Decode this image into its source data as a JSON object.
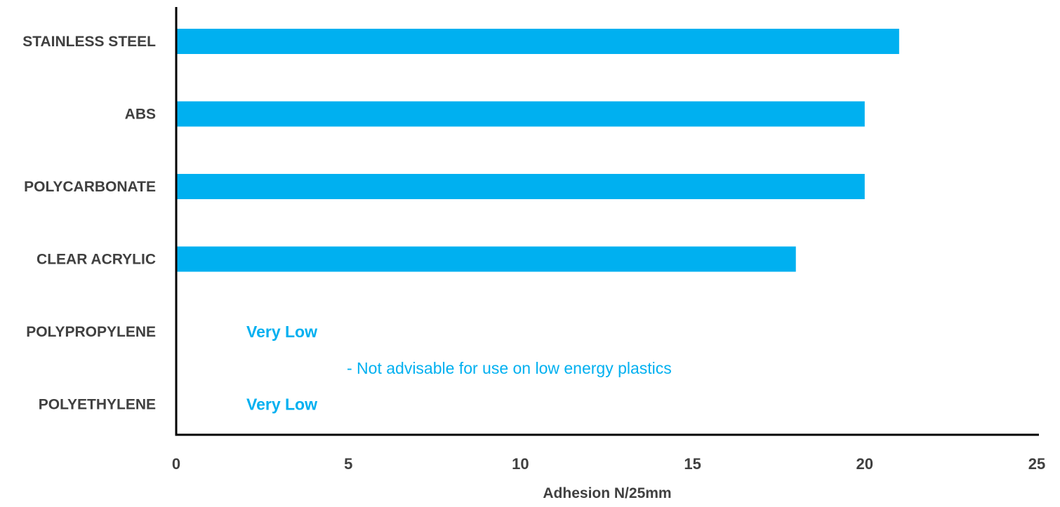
{
  "chart_data": {
    "type": "bar",
    "orientation": "horizontal",
    "categories": [
      "STAINLESS STEEL",
      "ABS",
      "POLYCARBONATE",
      "CLEAR ACRYLIC",
      "POLYPROPYLENE",
      "POLYETHYLENE"
    ],
    "values": [
      21,
      20,
      20,
      18,
      null,
      null
    ],
    "xlabel": "Adhesion N/25mm",
    "ylabel": "",
    "xlim": [
      0,
      25
    ],
    "xticks": [
      "0",
      "5",
      "10",
      "15",
      "20",
      "25"
    ],
    "grid": false,
    "legend": "none",
    "bar_color": "#00b0f0",
    "text_color": "#404040",
    "annotations": [
      {
        "category": "POLYPROPYLENE",
        "text": "Very Low",
        "bold": true
      },
      {
        "category": "POLYETHYLENE",
        "text": "Very Low",
        "bold": true
      },
      {
        "text": "- Not advisable for use on low energy plastics",
        "bold": false
      }
    ]
  }
}
